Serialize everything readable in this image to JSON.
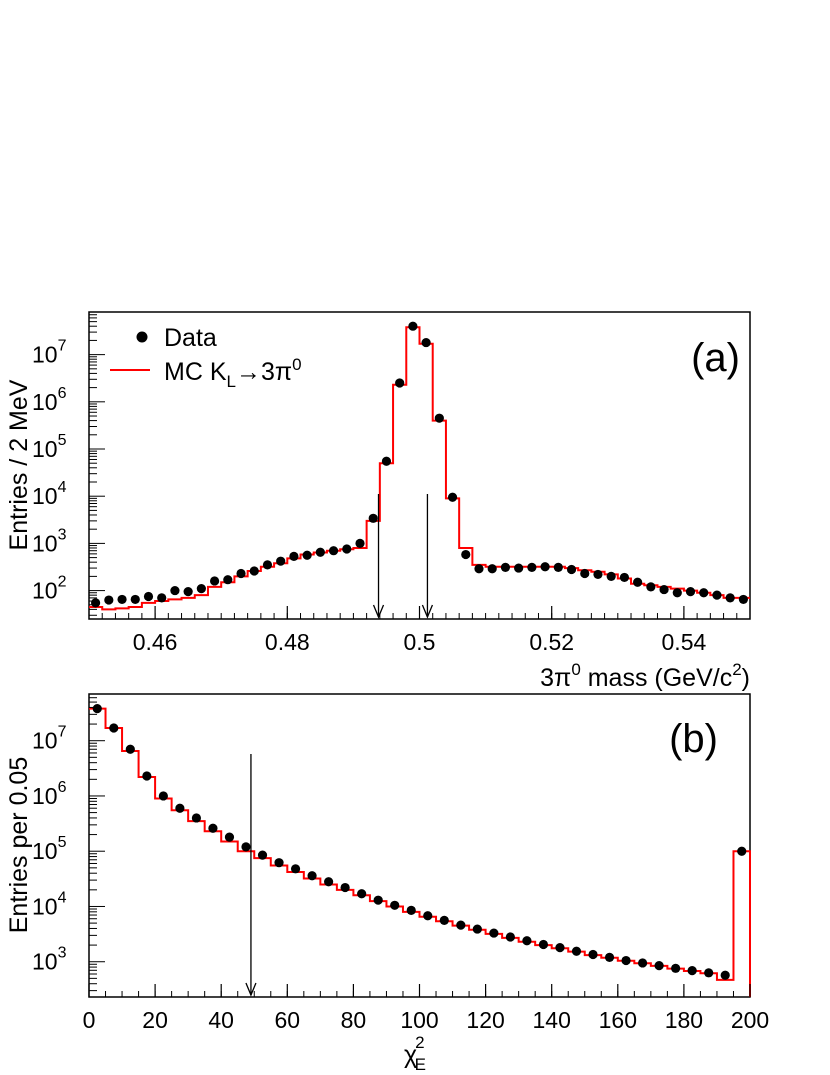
{
  "chart_data": [
    {
      "panel": "(a)",
      "type": "scatter",
      "xlabel": "3π⁰ mass (GeV/c²)",
      "xlabel_main": "3π",
      "xlabel_sup": "0",
      "xlabel_tail": " mass (GeV/c",
      "xlabel_sup2": "2",
      "xlabel_end": ")",
      "ylabel": "Entries / 2 MeV",
      "xlim": [
        0.45,
        0.55
      ],
      "ylim": [
        25,
        80000000
      ],
      "log_y": true,
      "x_ticks": [
        "0.46",
        "0.48",
        "0.5",
        "0.52",
        "0.54"
      ],
      "x_tick_values": [
        0.46,
        0.48,
        0.5,
        0.52,
        0.54
      ],
      "y_ticks": [
        {
          "base": "10",
          "exp": "2",
          "value": 100
        },
        {
          "base": "10",
          "exp": "3",
          "value": 1000
        },
        {
          "base": "10",
          "exp": "4",
          "value": 10000
        },
        {
          "base": "10",
          "exp": "5",
          "value": 100000
        },
        {
          "base": "10",
          "exp": "6",
          "value": 1000000
        },
        {
          "base": "10",
          "exp": "7",
          "value": 10000000
        }
      ],
      "legend": {
        "position": "top-left",
        "data_label": "Data",
        "mc_label_main": "MC K",
        "mc_label_sub": "L",
        "mc_label_arrow": "→3π",
        "mc_label_sup": "0"
      },
      "cut_arrows_x": [
        0.4938,
        0.5012
      ],
      "series": [
        {
          "name": "Data",
          "style": "markers",
          "color": "#000000",
          "bin_width": 0.002,
          "x_start": 0.451,
          "values": [
            55,
            63,
            65,
            65,
            75,
            70,
            100,
            95,
            110,
            160,
            170,
            230,
            260,
            350,
            420,
            530,
            560,
            650,
            700,
            760,
            1000,
            3400,
            55000,
            2500000,
            40000000,
            18000000,
            450000,
            9500,
            580,
            290,
            290,
            310,
            300,
            310,
            320,
            310,
            280,
            230,
            220,
            200,
            190,
            150,
            120,
            105,
            90,
            95,
            90,
            80,
            70,
            65
          ]
        },
        {
          "name": "MC K_L→3π⁰",
          "style": "step",
          "color": "#ff0000",
          "bin_width": 0.002,
          "x_start": 0.45,
          "values": [
            45,
            40,
            42,
            45,
            55,
            60,
            65,
            70,
            80,
            120,
            150,
            200,
            260,
            320,
            380,
            480,
            580,
            640,
            700,
            750,
            800,
            3000,
            50000,
            2300000,
            38000000,
            17000000,
            400000,
            9000,
            800,
            350,
            320,
            320,
            320,
            320,
            320,
            320,
            300,
            270,
            250,
            220,
            180,
            140,
            130,
            120,
            110,
            100,
            90,
            80,
            70,
            70
          ]
        }
      ]
    },
    {
      "panel": "(b)",
      "type": "scatter",
      "xlabel": "χ²_E",
      "xlabel_main": "χ",
      "xlabel_sup": "2",
      "xlabel_sub": "E",
      "ylabel": "Entries per 0.05",
      "xlim": [
        0,
        200
      ],
      "ylim": [
        230,
        70000000
      ],
      "log_y": true,
      "x_ticks": [
        "0",
        "20",
        "40",
        "60",
        "80",
        "100",
        "120",
        "140",
        "160",
        "180",
        "200"
      ],
      "x_tick_values": [
        0,
        20,
        40,
        60,
        80,
        100,
        120,
        140,
        160,
        180,
        200
      ],
      "y_ticks": [
        {
          "base": "10",
          "exp": "3",
          "value": 1000
        },
        {
          "base": "10",
          "exp": "4",
          "value": 10000
        },
        {
          "base": "10",
          "exp": "5",
          "value": 100000
        },
        {
          "base": "10",
          "exp": "6",
          "value": 1000000
        },
        {
          "base": "10",
          "exp": "7",
          "value": 10000000
        }
      ],
      "cut_arrow_x": 49,
      "series": [
        {
          "name": "Data",
          "style": "markers",
          "color": "#000000",
          "bin_width": 5,
          "x_start": 2.5,
          "values": [
            38000000,
            17000000,
            7000000,
            2300000,
            1000000,
            600000,
            400000,
            260000,
            180000,
            120000,
            85000,
            62000,
            48000,
            36000,
            28000,
            22000,
            17000,
            13000,
            10500,
            8500,
            6800,
            5600,
            4600,
            3900,
            3300,
            2800,
            2400,
            2050,
            1800,
            1550,
            1350,
            1200,
            1050,
            950,
            850,
            760,
            690,
            630,
            570,
            100000
          ]
        },
        {
          "name": "MC",
          "style": "step",
          "color": "#ff0000",
          "bin_width": 5,
          "x_start": 0,
          "values": [
            38000000,
            17000000,
            6500000,
            2200000,
            900000,
            550000,
            350000,
            230000,
            150000,
            100000,
            75000,
            55000,
            42000,
            32000,
            25000,
            20000,
            16000,
            12500,
            10000,
            8000,
            6500,
            5400,
            4500,
            3800,
            3200,
            2700,
            2300,
            2000,
            1750,
            1520,
            1320,
            1180,
            1040,
            940,
            840,
            750,
            680,
            620,
            470,
            100000
          ]
        }
      ]
    }
  ]
}
